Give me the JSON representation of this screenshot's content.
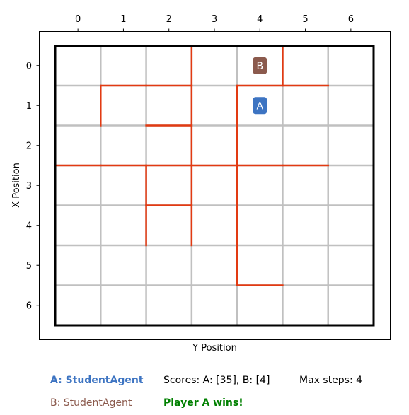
{
  "board": {
    "size": 7,
    "x_axis_label": "Y Position",
    "y_axis_label": "X Position",
    "top_ticks": [
      "0",
      "1",
      "2",
      "3",
      "4",
      "5",
      "6"
    ],
    "left_ticks": [
      "0",
      "1",
      "2",
      "3",
      "4",
      "5",
      "6"
    ],
    "colors": {
      "grid": "#c0c0c0",
      "wall": "#e23a12",
      "border": "#000000",
      "player_a": "#3d74c2",
      "player_b": "#8b5a4d"
    },
    "walls": [
      {
        "row": 0,
        "col": 2,
        "side": "right"
      },
      {
        "row": 0,
        "col": 4,
        "side": "right"
      },
      {
        "row": 0,
        "col": 1,
        "side": "bottom"
      },
      {
        "row": 0,
        "col": 2,
        "side": "bottom"
      },
      {
        "row": 0,
        "col": 4,
        "side": "bottom"
      },
      {
        "row": 0,
        "col": 5,
        "side": "bottom"
      },
      {
        "row": 1,
        "col": 0,
        "side": "right"
      },
      {
        "row": 1,
        "col": 2,
        "side": "right"
      },
      {
        "row": 1,
        "col": 3,
        "side": "right"
      },
      {
        "row": 1,
        "col": 2,
        "side": "bottom"
      },
      {
        "row": 2,
        "col": 2,
        "side": "right"
      },
      {
        "row": 2,
        "col": 3,
        "side": "right"
      },
      {
        "row": 2,
        "col": 0,
        "side": "bottom"
      },
      {
        "row": 2,
        "col": 1,
        "side": "bottom"
      },
      {
        "row": 2,
        "col": 2,
        "side": "bottom"
      },
      {
        "row": 2,
        "col": 3,
        "side": "bottom"
      },
      {
        "row": 2,
        "col": 4,
        "side": "bottom"
      },
      {
        "row": 2,
        "col": 5,
        "side": "bottom"
      },
      {
        "row": 3,
        "col": 1,
        "side": "right"
      },
      {
        "row": 3,
        "col": 2,
        "side": "right"
      },
      {
        "row": 3,
        "col": 3,
        "side": "right"
      },
      {
        "row": 3,
        "col": 2,
        "side": "bottom"
      },
      {
        "row": 4,
        "col": 1,
        "side": "right"
      },
      {
        "row": 4,
        "col": 2,
        "side": "right"
      },
      {
        "row": 4,
        "col": 3,
        "side": "right"
      },
      {
        "row": 5,
        "col": 3,
        "side": "right"
      },
      {
        "row": 5,
        "col": 4,
        "side": "bottom"
      }
    ],
    "players": [
      {
        "label": "A",
        "row": 1,
        "col": 4,
        "color": "#3d74c2"
      },
      {
        "label": "B",
        "row": 0,
        "col": 4,
        "color": "#8b5a4d"
      }
    ]
  },
  "info": {
    "player_a": "A: StudentAgent",
    "player_b": "B: StudentAgent",
    "scores": "Scores: A: [35], B: [4]",
    "result": "Player A wins!",
    "max_steps": "Max steps: 4",
    "colors": {
      "player_a": "#3d74c2",
      "player_b": "#8b5a4d",
      "result": "#008000",
      "text": "#000000"
    }
  }
}
